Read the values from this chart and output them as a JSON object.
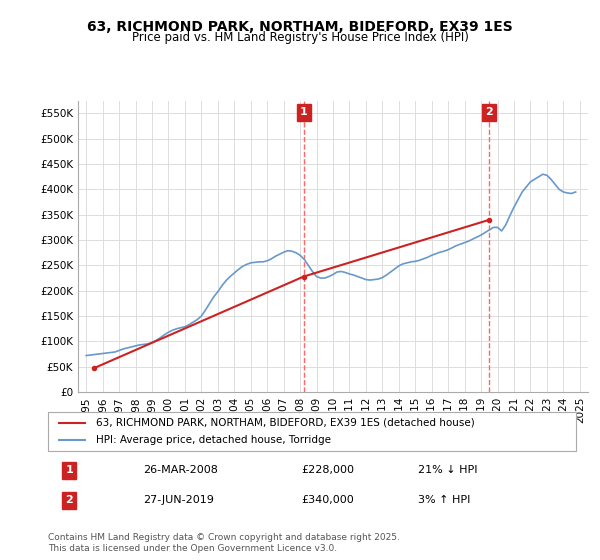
{
  "title": "63, RICHMOND PARK, NORTHAM, BIDEFORD, EX39 1ES",
  "subtitle": "Price paid vs. HM Land Registry's House Price Index (HPI)",
  "legend_line1": "63, RICHMOND PARK, NORTHAM, BIDEFORD, EX39 1ES (detached house)",
  "legend_line2": "HPI: Average price, detached house, Torridge",
  "annotation1_label": "1",
  "annotation1_date": "26-MAR-2008",
  "annotation1_price": "£228,000",
  "annotation1_pct": "21% ↓ HPI",
  "annotation2_label": "2",
  "annotation2_date": "27-JUN-2019",
  "annotation2_price": "£340,000",
  "annotation2_pct": "3% ↑ HPI",
  "footnote": "Contains HM Land Registry data © Crown copyright and database right 2025.\nThis data is licensed under the Open Government Licence v3.0.",
  "hpi_color": "#6699cc",
  "price_color": "#cc2222",
  "vline_color": "#ff6666",
  "annotation_box_color": "#cc2222",
  "ylim_min": 0,
  "ylim_max": 575000,
  "yticks": [
    0,
    50000,
    100000,
    150000,
    200000,
    250000,
    300000,
    350000,
    400000,
    450000,
    500000,
    550000
  ],
  "ytick_labels": [
    "£0",
    "£50K",
    "£100K",
    "£150K",
    "£200K",
    "£250K",
    "£300K",
    "£350K",
    "£400K",
    "£450K",
    "£500K",
    "£550K"
  ],
  "hpi_years": [
    1995.0,
    1995.25,
    1995.5,
    1995.75,
    1996.0,
    1996.25,
    1996.5,
    1996.75,
    1997.0,
    1997.25,
    1997.5,
    1997.75,
    1998.0,
    1998.25,
    1998.5,
    1998.75,
    1999.0,
    1999.25,
    1999.5,
    1999.75,
    2000.0,
    2000.25,
    2000.5,
    2000.75,
    2001.0,
    2001.25,
    2001.5,
    2001.75,
    2002.0,
    2002.25,
    2002.5,
    2002.75,
    2003.0,
    2003.25,
    2003.5,
    2003.75,
    2004.0,
    2004.25,
    2004.5,
    2004.75,
    2005.0,
    2005.25,
    2005.5,
    2005.75,
    2006.0,
    2006.25,
    2006.5,
    2006.75,
    2007.0,
    2007.25,
    2007.5,
    2007.75,
    2008.0,
    2008.25,
    2008.5,
    2008.75,
    2009.0,
    2009.25,
    2009.5,
    2009.75,
    2010.0,
    2010.25,
    2010.5,
    2010.75,
    2011.0,
    2011.25,
    2011.5,
    2011.75,
    2012.0,
    2012.25,
    2012.5,
    2012.75,
    2013.0,
    2013.25,
    2013.5,
    2013.75,
    2014.0,
    2014.25,
    2014.5,
    2014.75,
    2015.0,
    2015.25,
    2015.5,
    2015.75,
    2016.0,
    2016.25,
    2016.5,
    2016.75,
    2017.0,
    2017.25,
    2017.5,
    2017.75,
    2018.0,
    2018.25,
    2018.5,
    2018.75,
    2019.0,
    2019.25,
    2019.5,
    2019.75,
    2020.0,
    2020.25,
    2020.5,
    2020.75,
    2021.0,
    2021.25,
    2021.5,
    2021.75,
    2022.0,
    2022.25,
    2022.5,
    2022.75,
    2023.0,
    2023.25,
    2023.5,
    2023.75,
    2024.0,
    2024.25,
    2024.5,
    2024.75
  ],
  "hpi_values": [
    72000,
    73000,
    74000,
    75000,
    76000,
    77000,
    78000,
    79000,
    82000,
    85000,
    87000,
    89000,
    91000,
    93000,
    94000,
    95000,
    98000,
    102000,
    107000,
    113000,
    118000,
    122000,
    125000,
    127000,
    129000,
    133000,
    138000,
    143000,
    150000,
    162000,
    175000,
    188000,
    198000,
    210000,
    220000,
    228000,
    235000,
    242000,
    248000,
    252000,
    255000,
    256000,
    257000,
    257000,
    259000,
    263000,
    268000,
    272000,
    276000,
    279000,
    278000,
    275000,
    270000,
    262000,
    250000,
    238000,
    228000,
    225000,
    225000,
    228000,
    232000,
    237000,
    238000,
    236000,
    233000,
    231000,
    228000,
    225000,
    222000,
    221000,
    222000,
    223000,
    226000,
    231000,
    237000,
    243000,
    249000,
    253000,
    255000,
    257000,
    258000,
    260000,
    263000,
    266000,
    270000,
    273000,
    276000,
    278000,
    281000,
    285000,
    289000,
    292000,
    295000,
    298000,
    302000,
    306000,
    310000,
    315000,
    320000,
    325000,
    325000,
    318000,
    330000,
    348000,
    365000,
    380000,
    395000,
    405000,
    415000,
    420000,
    425000,
    430000,
    428000,
    420000,
    410000,
    400000,
    395000,
    393000,
    392000,
    395000
  ],
  "price_years": [
    1995.5,
    2008.22,
    2019.5
  ],
  "price_values": [
    47500,
    228000,
    340000
  ],
  "vline1_x": 2008.22,
  "vline2_x": 2019.5,
  "xmin": 1994.5,
  "xmax": 2025.5,
  "xticks": [
    1995,
    1996,
    1997,
    1998,
    1999,
    2000,
    2001,
    2002,
    2003,
    2004,
    2005,
    2006,
    2007,
    2008,
    2009,
    2010,
    2011,
    2012,
    2013,
    2014,
    2015,
    2016,
    2017,
    2018,
    2019,
    2020,
    2021,
    2022,
    2023,
    2024,
    2025
  ],
  "background_color": "#ffffff",
  "grid_color": "#dddddd"
}
